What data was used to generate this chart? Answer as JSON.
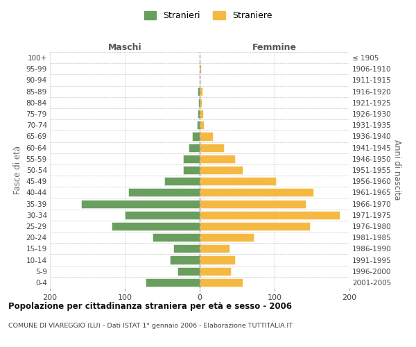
{
  "age_groups": [
    "100+",
    "95-99",
    "90-94",
    "85-89",
    "80-84",
    "75-79",
    "70-74",
    "65-69",
    "60-64",
    "55-59",
    "50-54",
    "45-49",
    "40-44",
    "35-39",
    "30-34",
    "25-29",
    "20-24",
    "15-19",
    "10-14",
    "5-9",
    "0-4"
  ],
  "birth_years": [
    "≤ 1905",
    "1906-1910",
    "1911-1915",
    "1916-1920",
    "1921-1925",
    "1926-1930",
    "1931-1935",
    "1936-1940",
    "1941-1945",
    "1946-1950",
    "1951-1955",
    "1956-1960",
    "1961-1965",
    "1966-1970",
    "1971-1975",
    "1976-1980",
    "1981-1985",
    "1986-1990",
    "1991-1995",
    "1996-2000",
    "2001-2005"
  ],
  "maschi": [
    0,
    0,
    0,
    3,
    2,
    3,
    4,
    10,
    15,
    22,
    22,
    47,
    95,
    158,
    100,
    118,
    63,
    35,
    40,
    30,
    72
  ],
  "femmine": [
    0,
    2,
    1,
    4,
    3,
    5,
    6,
    18,
    32,
    47,
    57,
    102,
    152,
    142,
    187,
    147,
    72,
    40,
    47,
    42,
    57
  ],
  "maschi_color": "#6a9e5e",
  "femmine_color": "#f5b942",
  "title": "Popolazione per cittadinanza straniera per età e sesso - 2006",
  "subtitle": "COMUNE DI VIAREGGIO (LU) - Dati ISTAT 1° gennaio 2006 - Elaborazione TUTTITALIA.IT",
  "label_maschi": "Maschi",
  "label_femmine": "Femmine",
  "ylabel_left": "Fasce di età",
  "ylabel_right": "Anni di nascita",
  "legend_stranieri": "Stranieri",
  "legend_straniere": "Straniere",
  "xlim": 200,
  "background_color": "#ffffff",
  "grid_color": "#c8c8c8"
}
